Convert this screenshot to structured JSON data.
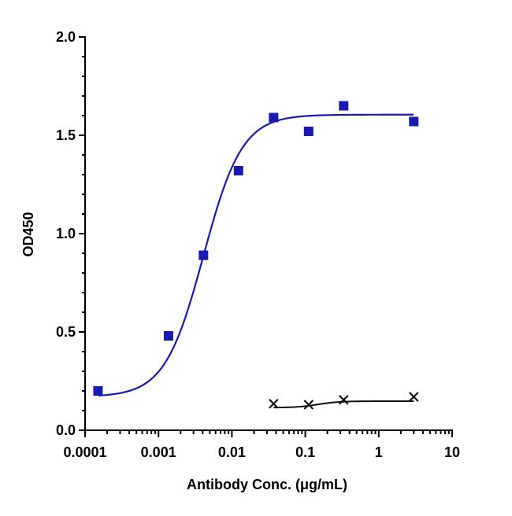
{
  "chart_data": {
    "type": "scatter",
    "xlabel": "Antibody Conc. (μg/mL)",
    "ylabel": "OD450",
    "xscale": "log",
    "xlim": [
      0.0001,
      10
    ],
    "ylim": [
      0,
      2.0
    ],
    "x_ticks": [
      "0.0001",
      "0.001",
      "0.01",
      "0.1",
      "1",
      "10"
    ],
    "y_ticks": [
      "0.0",
      "0.5",
      "1.0",
      "1.5",
      "2.0"
    ],
    "grid": false,
    "legend": "none",
    "series": [
      {
        "marker": "square",
        "color": "#1a1ab3",
        "x": [
          0.00015,
          0.00137,
          0.0041,
          0.0123,
          0.037,
          0.111,
          0.333,
          3.0
        ],
        "y": [
          0.2,
          0.48,
          0.89,
          1.32,
          1.59,
          1.52,
          1.65,
          1.57
        ],
        "fit": "4PL sigmoid"
      },
      {
        "marker": "x",
        "color": "#111111",
        "x": [
          0.037,
          0.111,
          0.333,
          3.0
        ],
        "y": [
          0.135,
          0.13,
          0.155,
          0.17
        ],
        "fit": "smooth curve"
      }
    ]
  }
}
